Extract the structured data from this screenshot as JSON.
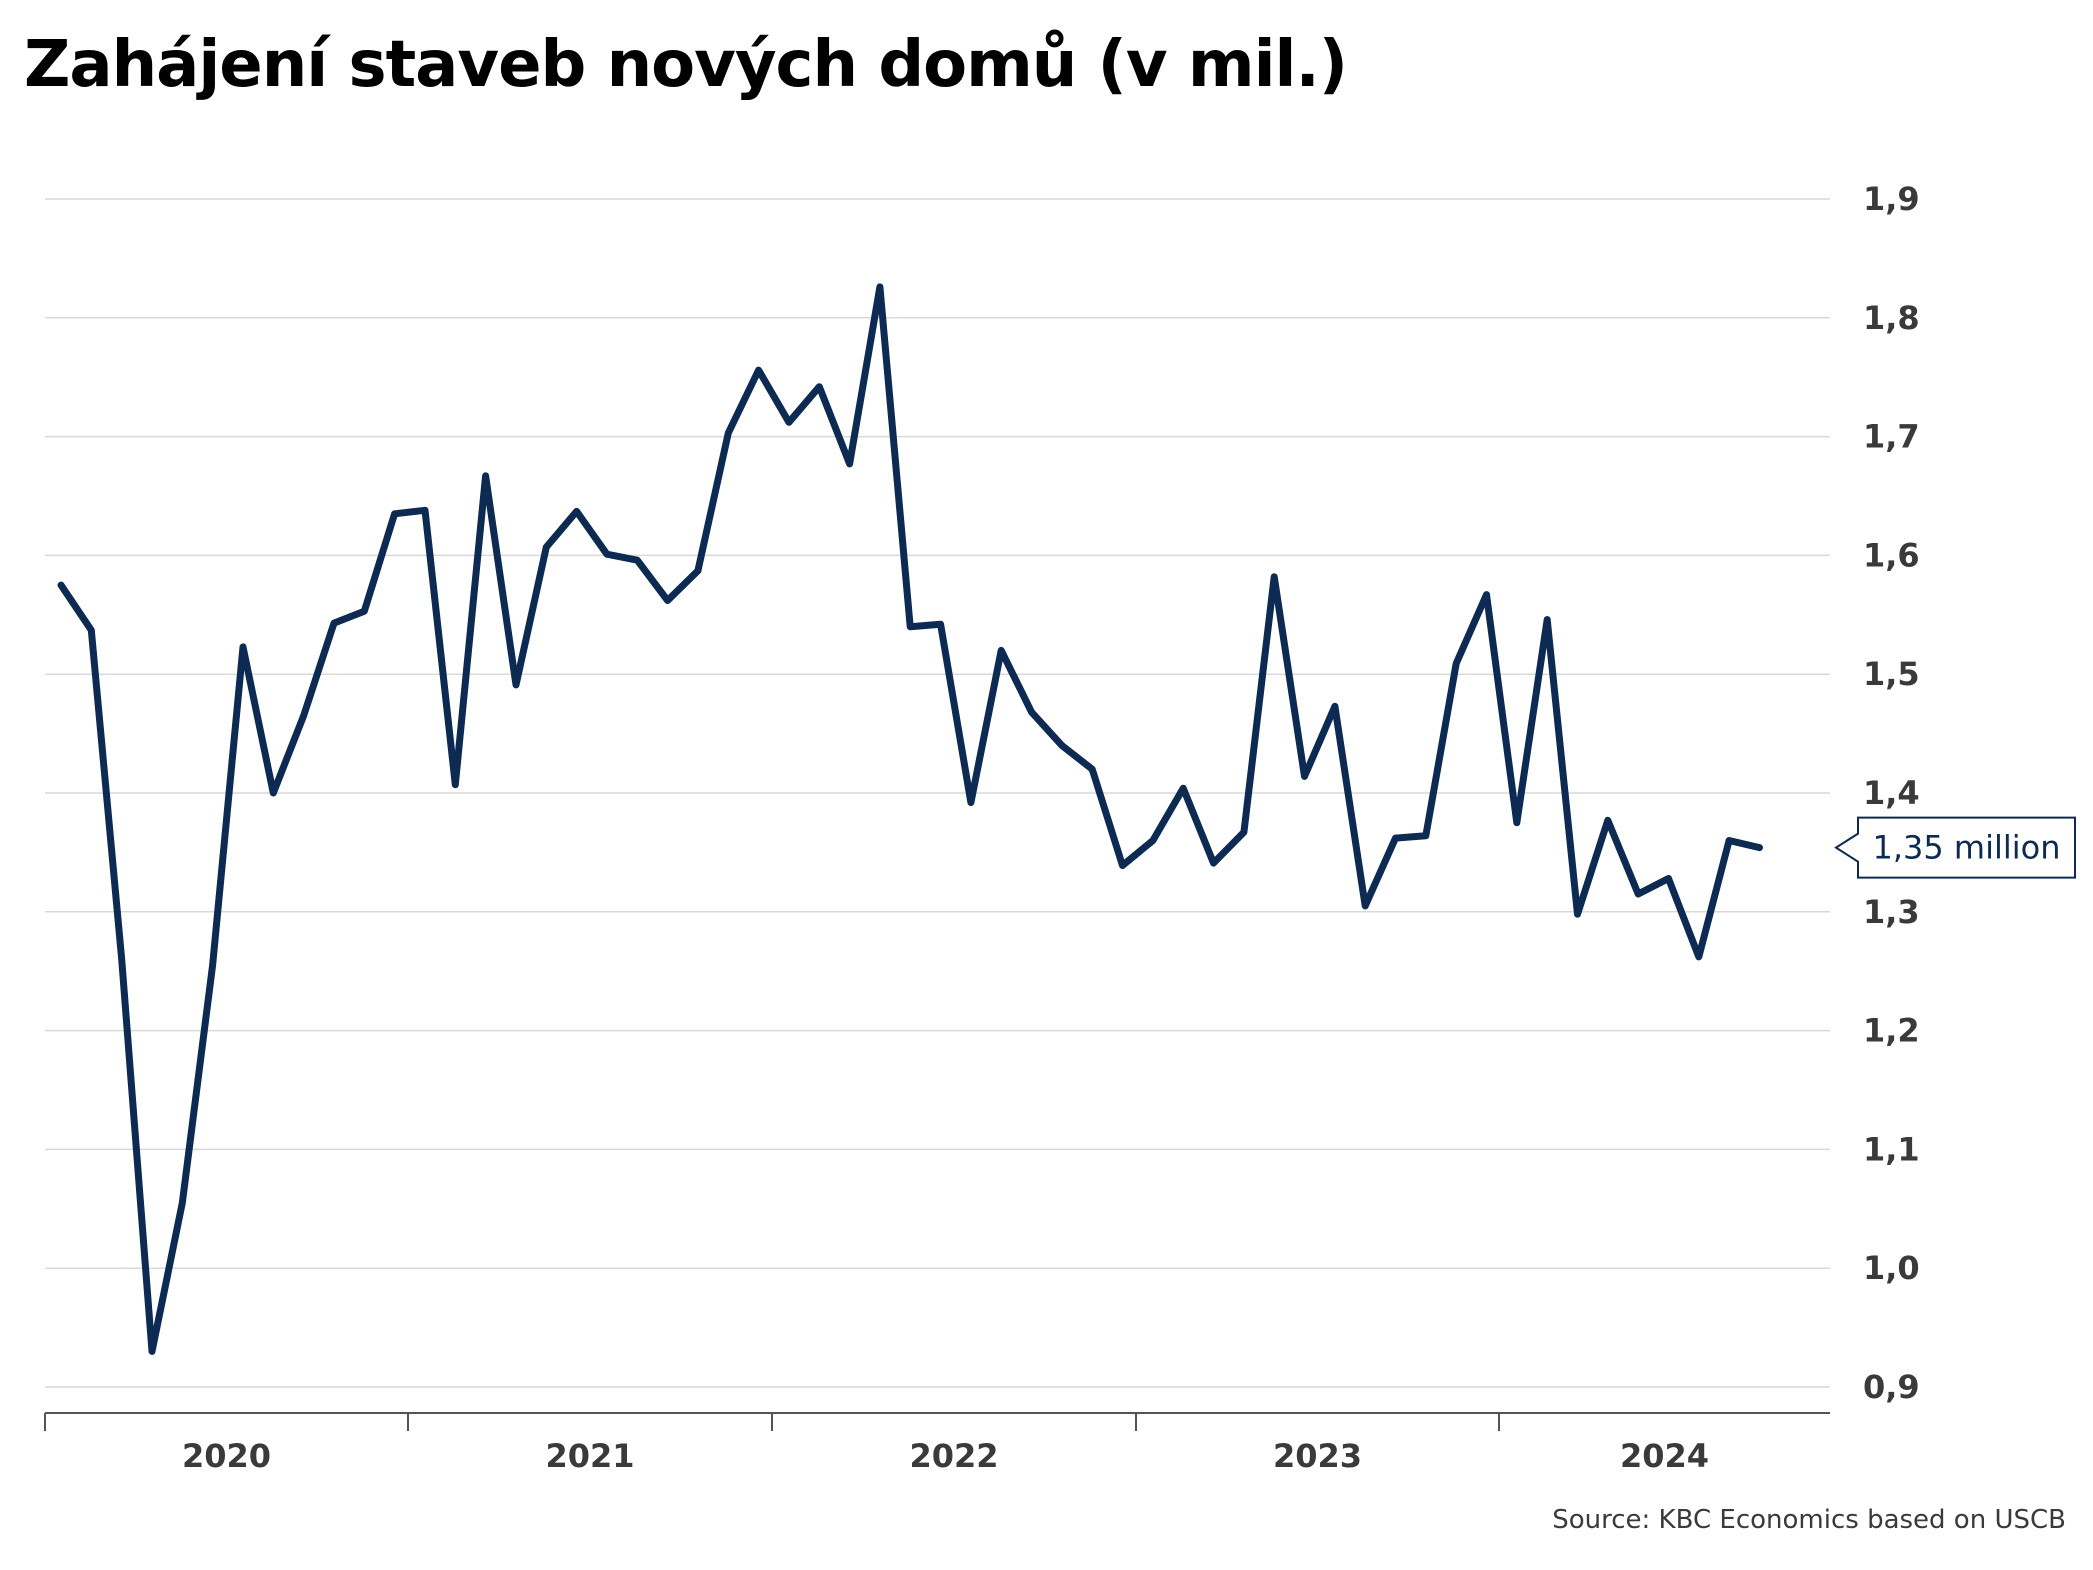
{
  "chart_data": {
    "type": "line",
    "title": "Zahájení staveb nových domů (v mil.)",
    "xlabel": "",
    "ylabel": "",
    "ylim": [
      0.9,
      1.9
    ],
    "y_ticks": [
      "1,9",
      "1,8",
      "1,7",
      "1,6",
      "1,5",
      "1,4",
      "1,3",
      "1,2",
      "1,1",
      "1,0",
      "0,9"
    ],
    "x_ticks": [
      "2020",
      "2021",
      "2022",
      "2023",
      "2024"
    ],
    "grid": "horizontal",
    "series": [
      {
        "values": [
          1.575,
          1.537,
          1.26,
          0.93,
          1.055,
          1.255,
          1.523,
          1.4,
          1.465,
          1.543,
          1.553,
          1.635,
          1.638,
          1.407,
          1.667,
          1.491,
          1.607,
          1.637,
          1.601,
          1.596,
          1.562,
          1.587,
          1.703,
          1.756,
          1.712,
          1.742,
          1.677,
          1.826,
          1.54,
          1.542,
          1.392,
          1.52,
          1.468,
          1.44,
          1.42,
          1.339,
          1.36,
          1.404,
          1.341,
          1.367,
          1.582,
          1.414,
          1.473,
          1.305,
          1.362,
          1.364,
          1.509,
          1.567,
          1.375,
          1.546,
          1.298,
          1.377,
          1.315,
          1.328,
          1.262,
          1.36,
          1.354
        ]
      }
    ],
    "annotation": "1,35 million",
    "color": "#0d2a52"
  },
  "source": "Source: KBC Economics based on USCB"
}
